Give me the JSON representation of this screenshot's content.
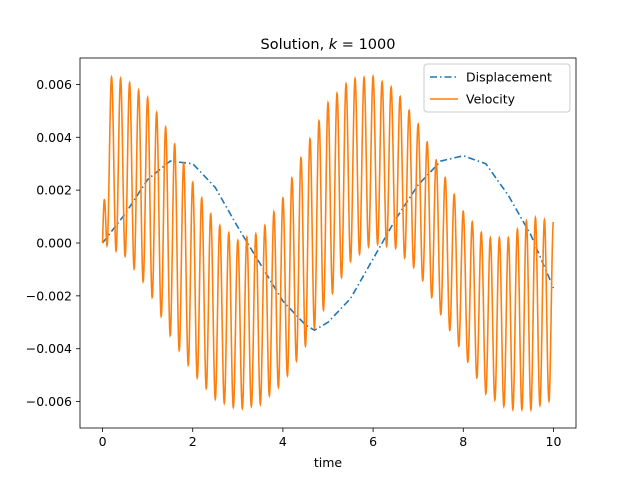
{
  "chart_data": {
    "type": "line",
    "title": "Solution, k = 1000",
    "title_prefix": "Solution, ",
    "title_math_var": "k",
    "title_math_rest": " = 1000",
    "xlabel": "time",
    "ylabel": "",
    "xlim": [
      -0.5,
      10.5
    ],
    "ylim": [
      -0.007,
      0.007
    ],
    "x_ticks": [
      0,
      2,
      4,
      6,
      8,
      10
    ],
    "x_tick_labels": [
      "0",
      "2",
      "4",
      "6",
      "8",
      "10"
    ],
    "y_ticks": [
      -0.006,
      -0.004,
      -0.002,
      0.0,
      0.002,
      0.004,
      0.006
    ],
    "y_tick_labels": [
      "−0.006",
      "−0.004",
      "−0.002",
      "0.000",
      "0.002",
      "0.004",
      "0.006"
    ],
    "grid": false,
    "legend_position": "top-right",
    "series": [
      {
        "name": "Displacement",
        "color": "#1f77b4",
        "linestyle": "dashdot",
        "x": [
          0.0,
          0.5,
          1.0,
          1.5,
          2.0,
          2.5,
          3.0,
          3.5,
          4.0,
          4.5,
          4.7,
          5.0,
          5.5,
          6.0,
          6.5,
          7.0,
          7.5,
          8.0,
          8.5,
          9.0,
          9.5,
          10.0
        ],
        "y": [
          0.0,
          0.0011,
          0.0024,
          0.0031,
          0.003,
          0.0021,
          0.0006,
          -0.0008,
          -0.0022,
          -0.0031,
          -0.0033,
          -0.003,
          -0.0021,
          -0.0006,
          0.0009,
          0.0022,
          0.0031,
          0.0033,
          0.003,
          0.0018,
          0.0003,
          -0.0017
        ]
      },
      {
        "name": "Velocity",
        "color": "#ff7f0e",
        "linestyle": "solid",
        "envelope_x": [
          0.0,
          0.1,
          0.5,
          1.0,
          1.5,
          2.0,
          2.5,
          3.0,
          3.5,
          4.0,
          4.5,
          5.0,
          5.5,
          6.0,
          6.5,
          7.0,
          7.5,
          8.0,
          8.5,
          9.0,
          9.5,
          10.0
        ],
        "envelope_upper": [
          0.0,
          0.0063,
          0.0062,
          0.0055,
          0.0041,
          0.0023,
          0.0008,
          0.0001,
          0.0004,
          0.0017,
          0.0036,
          0.0053,
          0.0062,
          0.0063,
          0.0058,
          0.0045,
          0.0028,
          0.0012,
          0.0002,
          0.0002,
          0.001,
          0.0008
        ],
        "envelope_lower": [
          0.0,
          -0.0001,
          -0.0005,
          -0.0017,
          -0.0035,
          -0.0049,
          -0.0059,
          -0.0063,
          -0.0061,
          -0.0053,
          -0.0039,
          -0.0022,
          -0.0007,
          0.0,
          -0.0002,
          -0.0011,
          -0.0027,
          -0.0042,
          -0.0057,
          -0.0063,
          -0.0063,
          -0.0059
        ],
        "oscillation_period": 0.2
      }
    ]
  }
}
